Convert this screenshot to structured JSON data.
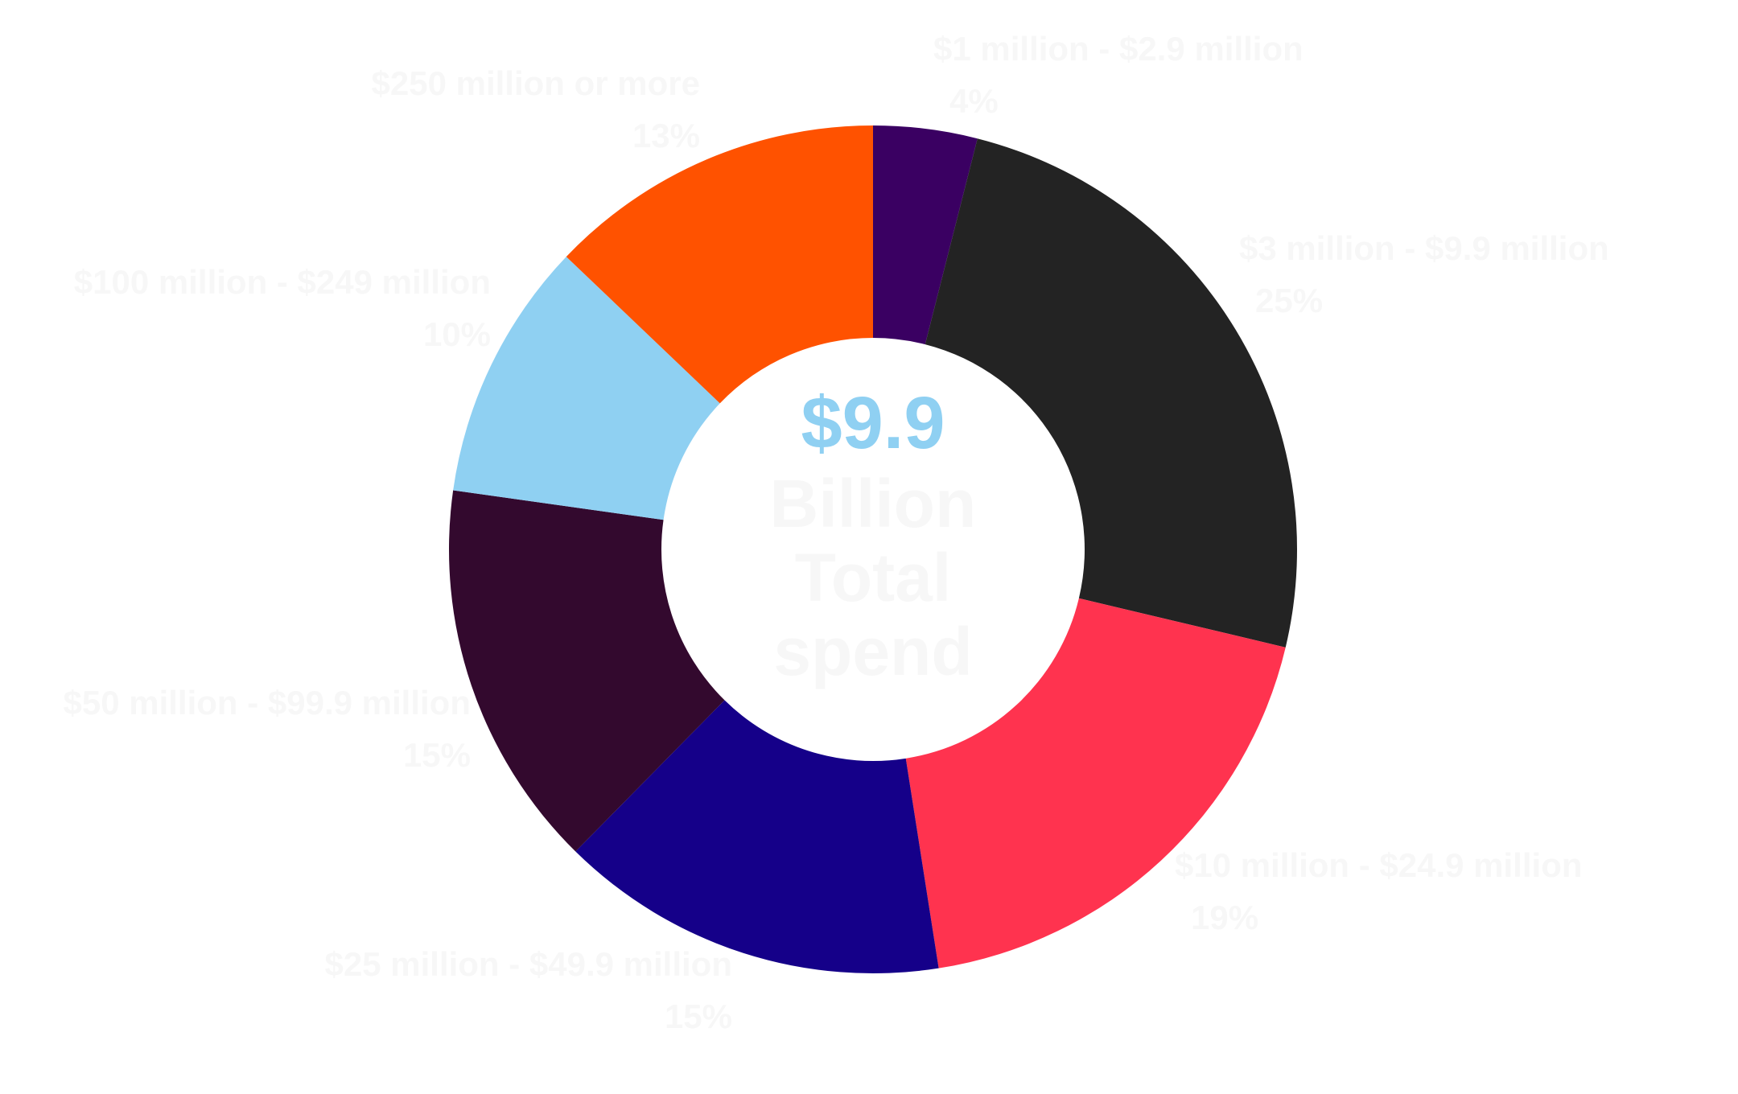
{
  "chart_data": {
    "type": "pie",
    "variant": "donut",
    "categories": [
      "$1 million - $2.9 million",
      "$3 million - $9.9 million",
      "$10 million - $24.9 million",
      "$25 million - $49.9 million",
      "$50 million - $99.9 million",
      "$100 million - $249 million",
      "$250 million or more"
    ],
    "values": [
      4,
      25,
      19,
      15,
      15,
      10,
      13
    ],
    "value_labels": [
      "4%",
      "25%",
      "19%",
      "15%",
      "15%",
      "10%",
      "13%"
    ],
    "colors": [
      "#3a0062",
      "#232323",
      "#ff334f",
      "#150089",
      "#33092e",
      "#8fd0f2",
      "#ff5200"
    ],
    "center_amount": "$9.9",
    "center_caption_lines": [
      "Billion",
      "Total",
      "spend"
    ],
    "center_amount_color": "#8fd0f2",
    "label_color": "#f7f7f7",
    "background_color": "#ffffff"
  }
}
